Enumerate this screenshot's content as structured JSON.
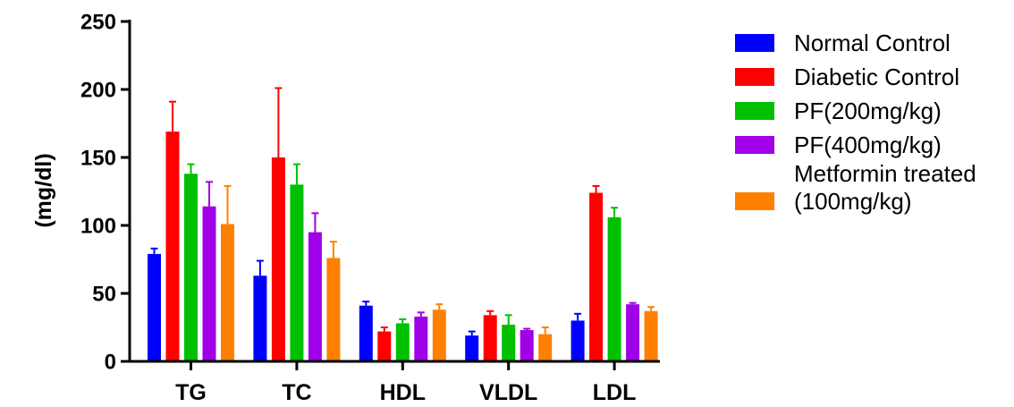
{
  "chart_data": {
    "type": "bar",
    "categories": [
      "TG",
      "TC",
      "HDL",
      "VLDL",
      "LDL"
    ],
    "ylabel": "(mg/dl)",
    "xlabel": "",
    "ylim": [
      0,
      250
    ],
    "yticks": [
      0,
      50,
      100,
      150,
      200,
      250
    ],
    "grid": false,
    "legend_position": "right",
    "error_bars": true,
    "series": [
      {
        "name": "Normal Control",
        "color": "#0000ff",
        "values": [
          79,
          63,
          41,
          19,
          30
        ],
        "errors": [
          4,
          11,
          3,
          3,
          5
        ]
      },
      {
        "name": "Diabetic Control",
        "color": "#ff0000",
        "values": [
          169,
          150,
          22,
          34,
          124
        ],
        "errors": [
          22,
          51,
          3,
          3,
          5
        ]
      },
      {
        "name": "PF(200mg/kg)",
        "color": "#00c000",
        "values": [
          138,
          130,
          28,
          27,
          106
        ],
        "errors": [
          7,
          15,
          3,
          7,
          7
        ]
      },
      {
        "name": "PF(400mg/kg)",
        "color": "#a000e8",
        "values": [
          114,
          95,
          33,
          23,
          42
        ],
        "errors": [
          18,
          14,
          3,
          1,
          1
        ]
      },
      {
        "name": "Metformin treated (100mg/kg)",
        "name_lines": [
          "Metformin treated",
          "(100mg/kg)"
        ],
        "color": "#ff8000",
        "values": [
          101,
          76,
          38,
          20,
          37
        ],
        "errors": [
          28,
          12,
          4,
          5,
          3
        ]
      }
    ]
  }
}
